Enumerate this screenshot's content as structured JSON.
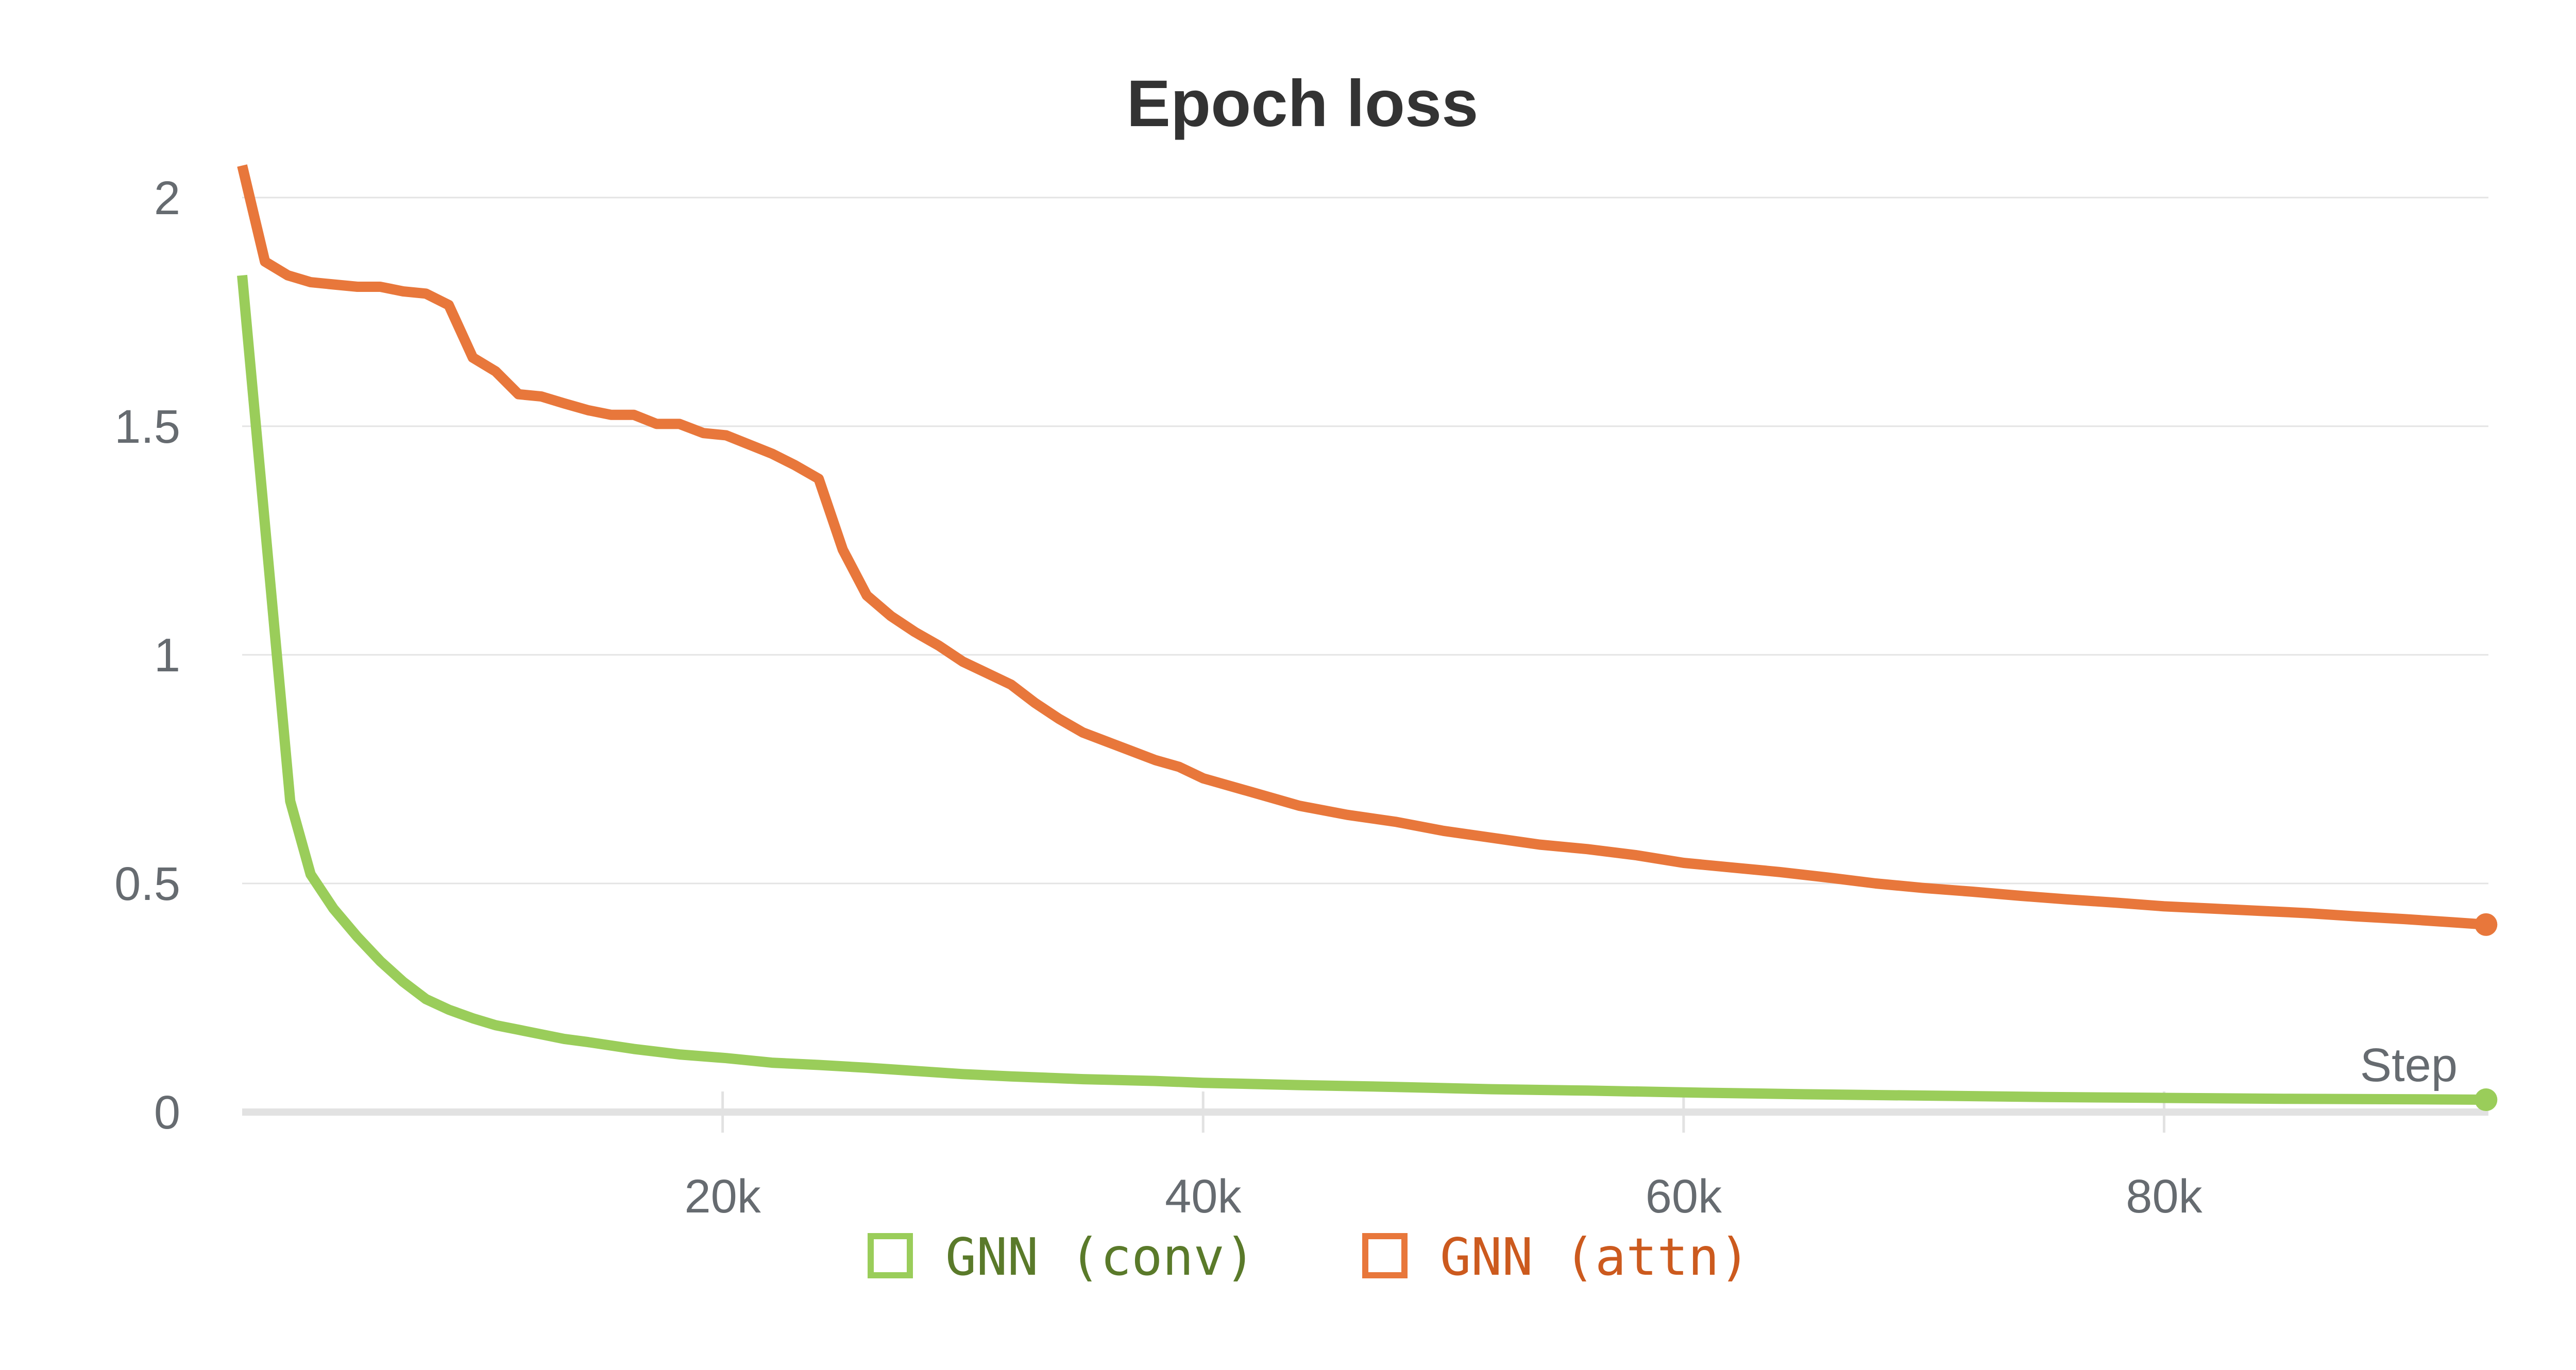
{
  "chart_data": {
    "type": "line",
    "title": "Epoch loss",
    "xlabel": "Step",
    "ylabel": "",
    "xlim": [
      0,
      93500
    ],
    "ylim": [
      0,
      2.1
    ],
    "x_ticks": [
      {
        "value": 20000,
        "label": "20k"
      },
      {
        "value": 40000,
        "label": "40k"
      },
      {
        "value": 60000,
        "label": "60k"
      },
      {
        "value": 80000,
        "label": "80k"
      }
    ],
    "y_ticks": [
      {
        "value": 0,
        "label": "0"
      },
      {
        "value": 0.5,
        "label": "0.5"
      },
      {
        "value": 1,
        "label": "1"
      },
      {
        "value": 1.5,
        "label": "1.5"
      },
      {
        "value": 2,
        "label": "2"
      }
    ],
    "grid": true,
    "legend_position": "bottom-center",
    "series": [
      {
        "name": "GNN (conv)",
        "color": "#9acd5a",
        "text_color": "#5a7a2a",
        "x": [
          0,
          2000,
          2850,
          3800,
          4800,
          5750,
          6700,
          7650,
          8600,
          9600,
          10550,
          11500,
          12450,
          13400,
          14400,
          16300,
          18200,
          20150,
          22050,
          24000,
          26000,
          28000,
          30000,
          32000,
          35000,
          38000,
          40000,
          44000,
          48000,
          52000,
          56000,
          60000,
          65000,
          70000,
          75000,
          80000,
          85000,
          90000,
          93400
        ],
        "y": [
          1.83,
          0.68,
          0.52,
          0.445,
          0.383,
          0.33,
          0.285,
          0.247,
          0.224,
          0.205,
          0.19,
          0.18,
          0.17,
          0.16,
          0.153,
          0.138,
          0.126,
          0.118,
          0.108,
          0.103,
          0.097,
          0.09,
          0.083,
          0.078,
          0.072,
          0.068,
          0.064,
          0.059,
          0.055,
          0.05,
          0.047,
          0.043,
          0.039,
          0.036,
          0.033,
          0.031,
          0.029,
          0.028,
          0.027
        ]
      },
      {
        "name": "GNN (attn)",
        "color": "#e8773b",
        "text_color": "#cc5a1e",
        "x": [
          0,
          950,
          1900,
          2850,
          3800,
          4800,
          5750,
          6700,
          7650,
          8600,
          9600,
          10550,
          11500,
          12450,
          13400,
          14400,
          15350,
          16300,
          17250,
          18200,
          19200,
          20150,
          21100,
          22050,
          23000,
          24000,
          25000,
          26000,
          27000,
          28000,
          29000,
          30000,
          31000,
          32000,
          33000,
          34000,
          35000,
          36000,
          37000,
          38000,
          39000,
          40000,
          42000,
          44000,
          46000,
          48000,
          50000,
          52000,
          54000,
          56000,
          58000,
          60000,
          62000,
          64000,
          66000,
          68000,
          70000,
          72000,
          74000,
          76000,
          78000,
          80000,
          82000,
          84000,
          86000,
          88000,
          90000,
          92000,
          93400
        ],
        "y": [
          2.07,
          1.86,
          1.83,
          1.815,
          1.81,
          1.805,
          1.805,
          1.795,
          1.79,
          1.765,
          1.65,
          1.62,
          1.57,
          1.565,
          1.55,
          1.535,
          1.525,
          1.525,
          1.505,
          1.505,
          1.485,
          1.48,
          1.46,
          1.44,
          1.415,
          1.385,
          1.23,
          1.13,
          1.085,
          1.05,
          1.02,
          0.985,
          0.96,
          0.935,
          0.895,
          0.86,
          0.83,
          0.81,
          0.79,
          0.77,
          0.755,
          0.73,
          0.7,
          0.67,
          0.65,
          0.635,
          0.615,
          0.6,
          0.585,
          0.575,
          0.562,
          0.545,
          0.535,
          0.525,
          0.513,
          0.5,
          0.49,
          0.482,
          0.473,
          0.465,
          0.458,
          0.45,
          0.445,
          0.44,
          0.435,
          0.428,
          0.422,
          0.415,
          0.41
        ]
      }
    ]
  }
}
